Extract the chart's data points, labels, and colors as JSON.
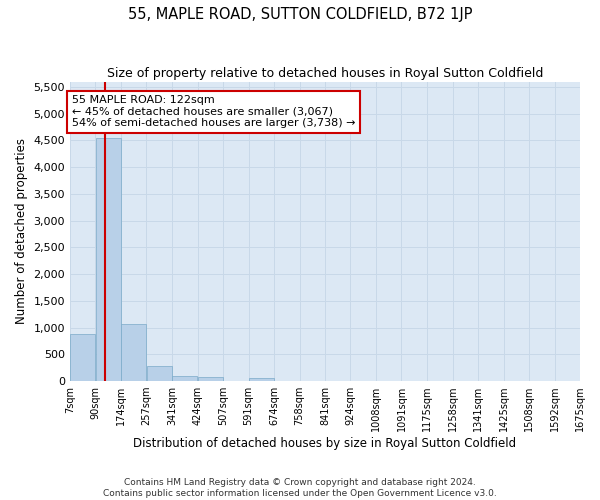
{
  "title": "55, MAPLE ROAD, SUTTON COLDFIELD, B72 1JP",
  "subtitle": "Size of property relative to detached houses in Royal Sutton Coldfield",
  "xlabel": "Distribution of detached houses by size in Royal Sutton Coldfield",
  "ylabel": "Number of detached properties",
  "footer_line1": "Contains HM Land Registry data © Crown copyright and database right 2024.",
  "footer_line2": "Contains public sector information licensed under the Open Government Licence v3.0.",
  "annotation_line1": "55 MAPLE ROAD: 122sqm",
  "annotation_line2": "← 45% of detached houses are smaller (3,067)",
  "annotation_line3": "54% of semi-detached houses are larger (3,738) →",
  "property_size_sqm": 122,
  "bin_edges": [
    7,
    90,
    174,
    257,
    341,
    424,
    507,
    591,
    674,
    758,
    841,
    924,
    1008,
    1091,
    1175,
    1258,
    1341,
    1425,
    1508,
    1592,
    1675
  ],
  "bin_labels": [
    "7sqm",
    "90sqm",
    "174sqm",
    "257sqm",
    "341sqm",
    "424sqm",
    "507sqm",
    "591sqm",
    "674sqm",
    "758sqm",
    "841sqm",
    "924sqm",
    "1008sqm",
    "1091sqm",
    "1175sqm",
    "1258sqm",
    "1341sqm",
    "1425sqm",
    "1508sqm",
    "1592sqm",
    "1675sqm"
  ],
  "bar_heights": [
    880,
    4550,
    1060,
    280,
    90,
    80,
    0,
    60,
    0,
    0,
    0,
    0,
    0,
    0,
    0,
    0,
    0,
    0,
    0,
    0
  ],
  "bar_color": "#b8d0e8",
  "bar_edge_color": "#7aaac8",
  "vline_color": "#cc0000",
  "vline_x": 122,
  "annotation_box_edge": "#cc0000",
  "annotation_box_fill": "#ffffff",
  "ylim": [
    0,
    5600
  ],
  "yticks": [
    0,
    500,
    1000,
    1500,
    2000,
    2500,
    3000,
    3500,
    4000,
    4500,
    5000,
    5500
  ],
  "grid_color": "#c8d8e8",
  "fig_bg_color": "#ffffff",
  "plot_bg_color": "#dce8f4",
  "title_fontsize": 10.5,
  "subtitle_fontsize": 9,
  "footer_fontsize": 6.5
}
